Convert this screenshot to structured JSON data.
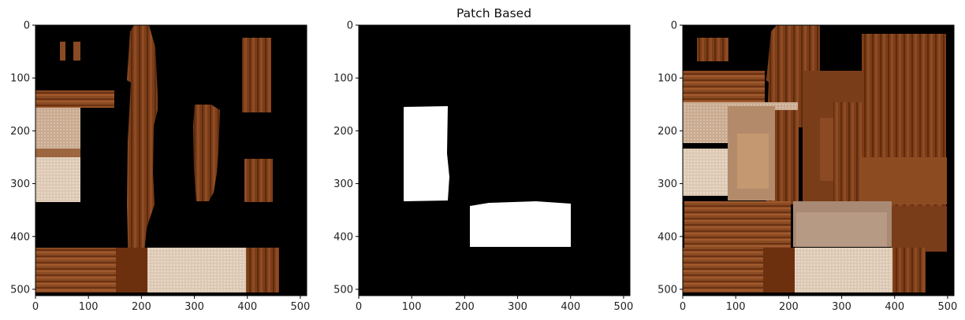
{
  "chart_data": [
    {
      "type": "image",
      "content": "texture-atlas",
      "title": "",
      "x_ticks": [
        0,
        100,
        200,
        300,
        400,
        500
      ],
      "y_ticks": [
        0,
        100,
        200,
        300,
        400,
        500
      ],
      "xlim": [
        0,
        512
      ],
      "ylim": [
        512,
        0
      ],
      "background": "#000000"
    },
    {
      "type": "image",
      "content": "binary-mask",
      "title": "Patch Based",
      "x_ticks": [
        0,
        100,
        200,
        300,
        400,
        500
      ],
      "y_ticks": [
        0,
        100,
        200,
        300,
        400,
        500
      ],
      "xlim": [
        0,
        512
      ],
      "ylim": [
        512,
        0
      ],
      "background": "#000000",
      "foreground": "#ffffff"
    },
    {
      "type": "image",
      "content": "inpainted-texture",
      "title": "",
      "x_ticks": [
        0,
        100,
        200,
        300,
        400,
        500
      ],
      "y_ticks": [
        0,
        100,
        200,
        300,
        400,
        500
      ],
      "xlim": [
        0,
        512
      ],
      "ylim": [
        512,
        0
      ],
      "background": "#000000"
    }
  ],
  "colors": {
    "wood_dark": "#5e2b0d",
    "wood_mid": "#8a4a22",
    "wood_light": "#a8633a",
    "fabric": "#c8a890",
    "fabric_light": "#e0cdb8"
  }
}
